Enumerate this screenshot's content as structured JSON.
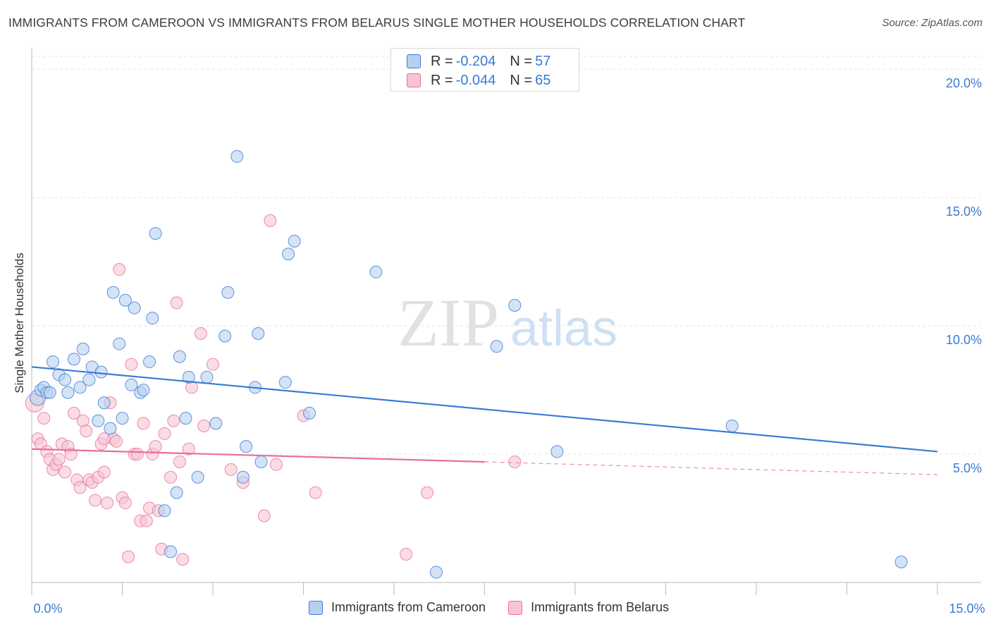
{
  "title": "IMMIGRANTS FROM CAMEROON VS IMMIGRANTS FROM BELARUS SINGLE MOTHER HOUSEHOLDS CORRELATION CHART",
  "source": "Source: ZipAtlas.com",
  "watermark": {
    "zip": "ZIP",
    "atlas": "atlas"
  },
  "legend": {
    "rows": [
      {
        "r_label": "R =",
        "r_value": "-0.204",
        "n_label": "N =",
        "n_value": "57"
      },
      {
        "r_label": "R =",
        "r_value": "-0.044",
        "n_label": "N =",
        "n_value": "65"
      }
    ]
  },
  "x_tick_labels": {
    "min": "0.0%",
    "max": "15.0%"
  },
  "chart_data": {
    "type": "scatter",
    "ylabel": "Single Mother Households",
    "xlim": [
      0,
      15
    ],
    "ylim": [
      0,
      20.5
    ],
    "y_ticks": [
      {
        "value": 5,
        "label": "5.0%"
      },
      {
        "value": 10,
        "label": "10.0%"
      },
      {
        "value": 15,
        "label": "15.0%"
      },
      {
        "value": 20,
        "label": "20.0%"
      }
    ],
    "x_ticks": [
      0,
      1.5,
      3,
      4.5,
      6,
      7.5,
      9,
      10.5,
      12,
      13.5,
      15
    ],
    "grid": "horizontal dashed",
    "legend_position": "top-center",
    "colors": {
      "cameroon": "#3a7bd5",
      "belarus": "#e8709a",
      "cameroon_fill": "#b8d0f0",
      "belarus_fill": "#f7c4d4"
    },
    "series": [
      {
        "name": "Immigrants from Cameroon",
        "color": "#3a7bd5",
        "r": -0.204,
        "n": 57,
        "trend": {
          "x": [
            0,
            15
          ],
          "y": [
            8.4,
            5.1
          ],
          "dashed_from": null
        },
        "points": [
          [
            0.1,
            7.2
          ],
          [
            0.15,
            7.5
          ],
          [
            0.2,
            7.6
          ],
          [
            0.25,
            7.4
          ],
          [
            0.3,
            7.4
          ],
          [
            0.35,
            8.6
          ],
          [
            0.45,
            8.1
          ],
          [
            0.55,
            7.9
          ],
          [
            0.6,
            7.4
          ],
          [
            0.7,
            8.7
          ],
          [
            0.8,
            7.6
          ],
          [
            0.85,
            9.1
          ],
          [
            0.95,
            7.9
          ],
          [
            1.0,
            8.4
          ],
          [
            1.1,
            6.3
          ],
          [
            1.15,
            8.2
          ],
          [
            1.2,
            7.0
          ],
          [
            1.3,
            6.0
          ],
          [
            1.35,
            11.3
          ],
          [
            1.45,
            9.3
          ],
          [
            1.5,
            6.4
          ],
          [
            1.55,
            11.0
          ],
          [
            1.65,
            7.7
          ],
          [
            1.7,
            10.7
          ],
          [
            1.8,
            7.4
          ],
          [
            1.85,
            7.5
          ],
          [
            1.95,
            8.6
          ],
          [
            2.0,
            10.3
          ],
          [
            2.05,
            13.6
          ],
          [
            2.2,
            2.8
          ],
          [
            2.3,
            1.2
          ],
          [
            2.4,
            3.5
          ],
          [
            2.45,
            8.8
          ],
          [
            2.55,
            6.4
          ],
          [
            2.6,
            8.0
          ],
          [
            2.75,
            4.1
          ],
          [
            2.9,
            8.0
          ],
          [
            3.05,
            6.2
          ],
          [
            3.2,
            9.6
          ],
          [
            3.25,
            11.3
          ],
          [
            3.4,
            16.6
          ],
          [
            3.5,
            4.1
          ],
          [
            3.55,
            5.3
          ],
          [
            3.7,
            7.6
          ],
          [
            3.75,
            9.7
          ],
          [
            3.8,
            4.7
          ],
          [
            4.2,
            7.8
          ],
          [
            4.25,
            12.8
          ],
          [
            4.35,
            13.3
          ],
          [
            4.6,
            6.6
          ],
          [
            5.7,
            12.1
          ],
          [
            6.7,
            0.4
          ],
          [
            7.7,
            9.2
          ],
          [
            8.0,
            10.8
          ],
          [
            8.7,
            5.1
          ],
          [
            11.6,
            6.1
          ],
          [
            14.4,
            0.8
          ]
        ]
      },
      {
        "name": "Immigrants from Belarus",
        "color": "#e8709a",
        "r": -0.044,
        "n": 65,
        "trend": {
          "x": [
            0,
            7.5,
            15
          ],
          "y": [
            5.2,
            4.7,
            4.2
          ],
          "dashed_from": 7.5
        },
        "points": [
          [
            0.05,
            7.0
          ],
          [
            0.1,
            5.6
          ],
          [
            0.15,
            5.4
          ],
          [
            0.2,
            6.4
          ],
          [
            0.25,
            5.1
          ],
          [
            0.3,
            4.8
          ],
          [
            0.35,
            4.4
          ],
          [
            0.4,
            4.6
          ],
          [
            0.45,
            4.8
          ],
          [
            0.5,
            5.4
          ],
          [
            0.55,
            4.3
          ],
          [
            0.6,
            5.3
          ],
          [
            0.65,
            5.0
          ],
          [
            0.7,
            6.6
          ],
          [
            0.75,
            4.0
          ],
          [
            0.8,
            3.7
          ],
          [
            0.85,
            6.3
          ],
          [
            0.9,
            5.9
          ],
          [
            0.95,
            4.0
          ],
          [
            1.0,
            3.9
          ],
          [
            1.05,
            3.2
          ],
          [
            1.1,
            4.1
          ],
          [
            1.15,
            5.4
          ],
          [
            1.2,
            4.3
          ],
          [
            1.25,
            3.1
          ],
          [
            1.3,
            7.0
          ],
          [
            1.35,
            5.6
          ],
          [
            1.4,
            5.5
          ],
          [
            1.45,
            12.2
          ],
          [
            1.5,
            3.3
          ],
          [
            1.55,
            3.1
          ],
          [
            1.6,
            1.0
          ],
          [
            1.65,
            8.5
          ],
          [
            1.7,
            5.0
          ],
          [
            1.75,
            5.0
          ],
          [
            1.8,
            2.4
          ],
          [
            1.85,
            6.2
          ],
          [
            1.9,
            2.4
          ],
          [
            1.95,
            2.9
          ],
          [
            2.0,
            5.0
          ],
          [
            2.05,
            5.3
          ],
          [
            2.1,
            2.8
          ],
          [
            2.15,
            1.3
          ],
          [
            2.2,
            5.8
          ],
          [
            2.3,
            4.1
          ],
          [
            2.35,
            6.3
          ],
          [
            2.4,
            10.9
          ],
          [
            2.45,
            4.7
          ],
          [
            2.5,
            0.9
          ],
          [
            2.6,
            5.2
          ],
          [
            2.65,
            7.6
          ],
          [
            2.8,
            9.7
          ],
          [
            2.85,
            6.1
          ],
          [
            3.0,
            8.5
          ],
          [
            3.3,
            4.4
          ],
          [
            3.5,
            3.9
          ],
          [
            3.85,
            2.6
          ],
          [
            3.95,
            14.1
          ],
          [
            4.05,
            4.6
          ],
          [
            4.5,
            6.5
          ],
          [
            4.7,
            3.5
          ],
          [
            6.2,
            1.1
          ],
          [
            6.55,
            3.5
          ],
          [
            8.0,
            4.7
          ],
          [
            1.2,
            5.6
          ]
        ]
      }
    ]
  }
}
